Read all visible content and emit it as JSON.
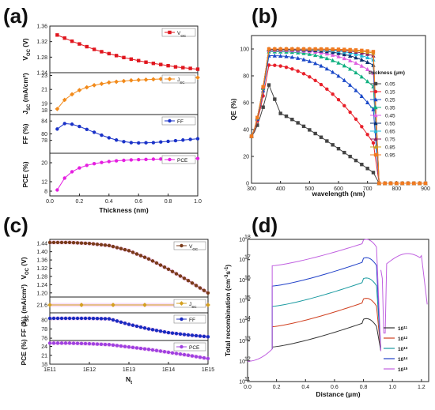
{
  "chart_data": [
    {
      "id": "a",
      "panel_label": "(a)",
      "type": "line",
      "xlabel": "Thickness (nm)",
      "x_ticks": [
        "0.0",
        "0.2",
        "0.4",
        "0.6",
        "0.8",
        "1.0"
      ],
      "xlim": [
        0,
        1.0
      ],
      "x": [
        0.05,
        0.1,
        0.15,
        0.2,
        0.25,
        0.3,
        0.35,
        0.4,
        0.45,
        0.5,
        0.55,
        0.6,
        0.65,
        0.7,
        0.75,
        0.8,
        0.85,
        0.9,
        0.95,
        1.0
      ],
      "subplots": [
        {
          "name": "Voc",
          "ylabel": "V",
          "ylabel_sub": "OC",
          "ylabel_rest": " (V)",
          "legend": "V",
          "legend_sub": "OC",
          "color": "#e0161e",
          "marker": "square",
          "ylim": [
            1.24,
            1.36
          ],
          "y_ticks": [
            "1.36",
            "1.32",
            "1.28",
            "1.24"
          ],
          "values": [
            1.337,
            1.329,
            1.321,
            1.314,
            1.307,
            1.3,
            1.294,
            1.289,
            1.284,
            1.279,
            1.275,
            1.271,
            1.267,
            1.264,
            1.261,
            1.258,
            1.255,
            1.253,
            1.251,
            1.249
          ]
        },
        {
          "name": "Jsc",
          "ylabel": "J",
          "ylabel_sub": "SC",
          "ylabel_rest": " (mA/cm²)",
          "legend": "J",
          "legend_sub": "SC",
          "color": "#f28a1a",
          "marker": "diamond",
          "ylim": [
            17.4,
            23.4
          ],
          "y_ticks": [
            "23",
            "21",
            "19",
            "18"
          ],
          "values": [
            18.2,
            19.5,
            20.3,
            20.9,
            21.3,
            21.6,
            21.8,
            22.0,
            22.1,
            22.2,
            22.3,
            22.35,
            22.4,
            22.45,
            22.5,
            22.55,
            22.6,
            22.6,
            22.65,
            22.7
          ]
        },
        {
          "name": "FF",
          "ylabel": "FF (%)",
          "legend": "FF",
          "color": "#1a32c8",
          "marker": "circle",
          "ylim": [
            74,
            86
          ],
          "y_ticks": [
            "84",
            "80",
            "78"
          ],
          "values": [
            81.5,
            83.2,
            83.0,
            82.3,
            81.4,
            80.5,
            79.6,
            78.8,
            78.1,
            77.6,
            77.3,
            77.2,
            77.25,
            77.3,
            77.5,
            77.7,
            77.9,
            78.1,
            78.3,
            78.5
          ]
        },
        {
          "name": "PCE",
          "ylabel": "PCE (%)",
          "legend": "PCE",
          "color": "#e51ee0",
          "marker": "circle",
          "ylim": [
            6,
            24
          ],
          "y_ticks": [
            "20",
            "12",
            "8"
          ],
          "values": [
            8.5,
            13.5,
            16.2,
            17.8,
            18.9,
            19.6,
            20.1,
            20.5,
            20.8,
            21.0,
            21.2,
            21.3,
            21.4,
            21.5,
            21.55,
            21.6,
            21.65,
            21.7,
            21.75,
            21.8
          ]
        }
      ]
    },
    {
      "id": "b",
      "panel_label": "(b)",
      "type": "line",
      "xlabel": "wavelength (nm)",
      "ylabel": "QE (%)",
      "xlim": [
        300,
        900
      ],
      "ylim": [
        0,
        110
      ],
      "x_ticks": [
        "300",
        "400",
        "500",
        "600",
        "700",
        "800",
        "900"
      ],
      "y_ticks": [
        "0",
        "20",
        "40",
        "60",
        "80",
        "100"
      ],
      "legend_title": "thickness (μm)",
      "series": [
        {
          "name": "0.05",
          "color": "#444444",
          "marker": "square"
        },
        {
          "name": "0.15",
          "color": "#e8202a",
          "marker": "circle"
        },
        {
          "name": "0.25",
          "color": "#1a48c8",
          "marker": "triangle"
        },
        {
          "name": "0.35",
          "color": "#10b080",
          "marker": "triangle"
        },
        {
          "name": "0.45",
          "color": "#e060e0",
          "marker": "triangle"
        },
        {
          "name": "0.55",
          "color": "#0a3070",
          "marker": "triangle"
        },
        {
          "name": "0.65",
          "color": "#20b8d8",
          "marker": "triangle"
        },
        {
          "name": "0.75",
          "color": "#8a2060",
          "marker": "triangle"
        },
        {
          "name": "0.85",
          "color": "#c8a020",
          "marker": "triangle"
        },
        {
          "name": "0.95",
          "color": "#f07a20",
          "marker": "square"
        }
      ],
      "features": {
        "onset_nm": 300,
        "peak_nm": 360,
        "cutoff_nm": 740,
        "onset_qe": 35,
        "plateau_qe": [
          60,
          88,
          95,
          98,
          99,
          99.5,
          100,
          100,
          100,
          100
        ],
        "end_qe": [
          8,
          30,
          55,
          72,
          82,
          88,
          92,
          95,
          97,
          98
        ]
      }
    },
    {
      "id": "c",
      "panel_label": "(c)",
      "type": "line",
      "xlabel": "N",
      "xlabel_sub": "t",
      "x_ticks": [
        "1E11",
        "1E12",
        "1E13",
        "1E14",
        "1E15"
      ],
      "xlim_log10": [
        11,
        15
      ],
      "subplots": [
        {
          "name": "Voc",
          "ylabel": "V",
          "ylabel_sub": "OC",
          "ylabel_rest": " (V)",
          "legend": "V",
          "legend_sub": "OC",
          "color": "#7a3a1a",
          "marker": "circle",
          "ylim": [
            1.18,
            1.46
          ],
          "y_ticks": [
            "1.44",
            "1.40",
            "1.36",
            "1.32",
            "1.28",
            "1.24",
            "1.20"
          ],
          "log_x": [
            11,
            11.5,
            12,
            12.5,
            13,
            13.5,
            14,
            14.5,
            15
          ],
          "values": [
            1.445,
            1.445,
            1.44,
            1.43,
            1.405,
            1.365,
            1.315,
            1.26,
            1.2
          ]
        },
        {
          "name": "Jsc",
          "ylabel": "J",
          "ylabel_sub": "SC",
          "ylabel_rest": " (mA/cm²)",
          "legend": "J",
          "legend_sub": "SC",
          "color": "#d4a020",
          "marker": "diamond",
          "ylim": [
            21.0,
            22.2
          ],
          "y_ticks": [
            "21.6"
          ],
          "log_x": [
            11,
            15
          ],
          "values": [
            21.6,
            21.6
          ]
        },
        {
          "name": "FF",
          "ylabel": "FF (%)",
          "legend": "FF",
          "color": "#1a2ac0",
          "marker": "circle",
          "ylim": [
            75.5,
            81.5
          ],
          "y_ticks": [
            "80",
            "78",
            "76"
          ],
          "log_x": [
            11,
            11.5,
            12,
            12.5,
            13,
            13.5,
            14,
            14.5,
            15
          ],
          "values": [
            80.3,
            80.3,
            80.3,
            80.2,
            79.0,
            78.0,
            77.2,
            76.7,
            76.3
          ]
        },
        {
          "name": "PCE",
          "ylabel": "PCE (%)",
          "legend": "PCE",
          "color": "#a040e0",
          "marker": "circle",
          "ylim": [
            18,
            26
          ],
          "y_ticks": [
            "24",
            "21",
            "18"
          ],
          "log_x": [
            11,
            11.5,
            12,
            12.5,
            13,
            13.5,
            14,
            14.5,
            15
          ],
          "values": [
            25.1,
            25.1,
            24.9,
            24.6,
            23.8,
            23.0,
            22.0,
            21.0,
            19.9
          ]
        }
      ]
    },
    {
      "id": "d",
      "panel_label": "(d)",
      "type": "line",
      "xlabel": "Distance (μm)",
      "ylabel": "Total recombination (cm",
      "ylabel_sup": "-3",
      "ylabel_mid": "s",
      "ylabel_sup2": "-1",
      "ylabel_end": ")",
      "xlim": [
        0,
        1.25
      ],
      "ylim_log10": [
        11,
        18
      ],
      "x_ticks": [
        "0.0",
        "0.2",
        "0.4",
        "0.6",
        "0.8",
        "1.0",
        "1.2"
      ],
      "y_ticks_exp": [
        "11",
        "12",
        "13",
        "14",
        "15",
        "16",
        "17",
        "18"
      ],
      "series": [
        {
          "name": "10",
          "name_sup": "11",
          "color": "#333333",
          "base_log": 13.3,
          "peak_log": 14.1
        },
        {
          "name": "10",
          "name_sup": "12",
          "color": "#d04020",
          "base_log": 14.3,
          "peak_log": 15.1
        },
        {
          "name": "10",
          "name_sup": "13",
          "color": "#1a9aa0",
          "base_log": 15.3,
          "peak_log": 16.1
        },
        {
          "name": "10",
          "name_sup": "14",
          "color": "#2040c8",
          "base_log": 16.3,
          "peak_log": 17.1
        },
        {
          "name": "10",
          "name_sup": "15",
          "color": "#c060e0",
          "base_log": 17.3,
          "peak_log": 18.0
        }
      ]
    }
  ]
}
